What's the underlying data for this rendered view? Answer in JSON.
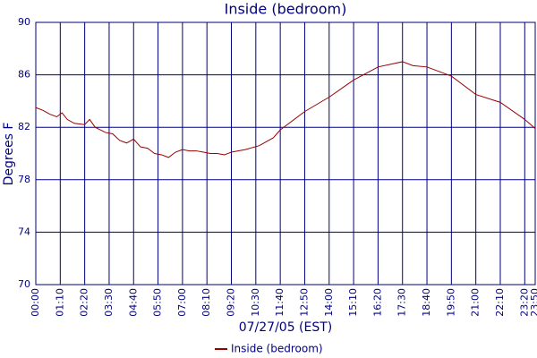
{
  "chart_data": {
    "type": "line",
    "title": "Inside (bedroom)",
    "x_label": "07/27/05 (EST)",
    "y_label": "Degrees F",
    "xlim": [
      0,
      1430
    ],
    "ylim": [
      70,
      90
    ],
    "yticks": [
      70,
      74,
      78,
      82,
      86,
      90
    ],
    "xticks": [
      {
        "value": 0,
        "label": "00:00"
      },
      {
        "value": 70,
        "label": "01:10"
      },
      {
        "value": 140,
        "label": "02:20"
      },
      {
        "value": 210,
        "label": "03:30"
      },
      {
        "value": 280,
        "label": "04:40"
      },
      {
        "value": 350,
        "label": "05:50"
      },
      {
        "value": 420,
        "label": "07:00"
      },
      {
        "value": 490,
        "label": "08:10"
      },
      {
        "value": 560,
        "label": "09:20"
      },
      {
        "value": 630,
        "label": "10:30"
      },
      {
        "value": 700,
        "label": "11:40"
      },
      {
        "value": 770,
        "label": "12:50"
      },
      {
        "value": 840,
        "label": "14:00"
      },
      {
        "value": 910,
        "label": "15:10"
      },
      {
        "value": 980,
        "label": "16:20"
      },
      {
        "value": 1050,
        "label": "17:30"
      },
      {
        "value": 1120,
        "label": "18:40"
      },
      {
        "value": 1190,
        "label": "19:50"
      },
      {
        "value": 1260,
        "label": "21:00"
      },
      {
        "value": 1330,
        "label": "22:10"
      },
      {
        "value": 1400,
        "label": "23:20"
      },
      {
        "value": 1430,
        "label": "23:50"
      }
    ],
    "grid": true,
    "x": [
      0,
      20,
      40,
      60,
      75,
      90,
      110,
      140,
      154,
      170,
      200,
      220,
      240,
      260,
      280,
      300,
      320,
      340,
      360,
      380,
      400,
      420,
      440,
      460,
      480,
      500,
      520,
      540,
      560,
      600,
      640,
      680,
      700,
      770,
      840,
      910,
      980,
      1050,
      1080,
      1120,
      1150,
      1190,
      1260,
      1330,
      1400,
      1430
    ],
    "series": [
      {
        "name": "Inside (bedroom)",
        "color": "#990000",
        "values": [
          83.5,
          83.3,
          83.0,
          82.8,
          83.1,
          82.6,
          82.3,
          82.2,
          82.6,
          82.0,
          81.6,
          81.5,
          81.0,
          80.8,
          81.1,
          80.5,
          80.4,
          80.0,
          79.9,
          79.7,
          80.1,
          80.3,
          80.2,
          80.2,
          80.1,
          80.0,
          80.0,
          79.9,
          80.1,
          80.3,
          80.6,
          81.2,
          81.8,
          83.2,
          84.3,
          85.6,
          86.6,
          87.0,
          86.7,
          86.6,
          86.3,
          85.9,
          84.5,
          83.9,
          82.6,
          81.9
        ]
      }
    ],
    "legend": "bottom"
  }
}
